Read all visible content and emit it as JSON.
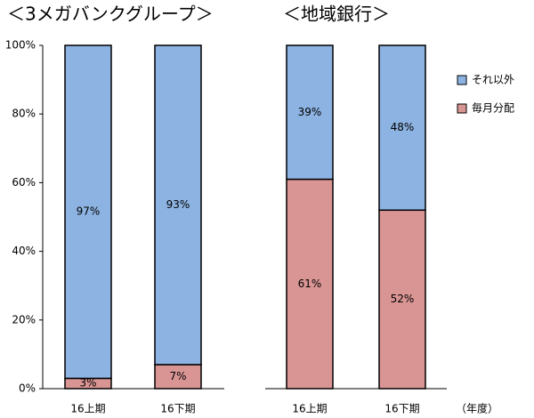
{
  "chart_data": [
    {
      "type": "stacked_bar",
      "title": "＜3メガバンクグループ＞",
      "categories": [
        "16上期",
        "16下期"
      ],
      "series": [
        {
          "name": "毎月分配",
          "color": "#d99594",
          "values": [
            3,
            7
          ],
          "value_labels": [
            "3%",
            "7%"
          ]
        },
        {
          "name": "それ以外",
          "color": "#8db3e2",
          "values": [
            97,
            93
          ],
          "value_labels": [
            "97%",
            "93%"
          ]
        }
      ],
      "ylim": [
        0,
        100
      ],
      "yticks": [
        {
          "value": 0,
          "label": "0%"
        },
        {
          "value": 20,
          "label": "20%"
        },
        {
          "value": 40,
          "label": "40%"
        },
        {
          "value": 60,
          "label": "60%"
        },
        {
          "value": 80,
          "label": "80%"
        },
        {
          "value": 100,
          "label": "100%"
        }
      ]
    },
    {
      "type": "stacked_bar",
      "title": "＜地域銀行＞",
      "categories": [
        "16上期",
        "16下期"
      ],
      "series": [
        {
          "name": "毎月分配",
          "color": "#d99594",
          "values": [
            61,
            52
          ],
          "value_labels": [
            "61%",
            "52%"
          ]
        },
        {
          "name": "それ以外",
          "color": "#8db3e2",
          "values": [
            39,
            48
          ],
          "value_labels": [
            "39%",
            "48%"
          ]
        }
      ],
      "ylim": [
        0,
        100
      ],
      "x_label": "（年度）"
    }
  ]
}
